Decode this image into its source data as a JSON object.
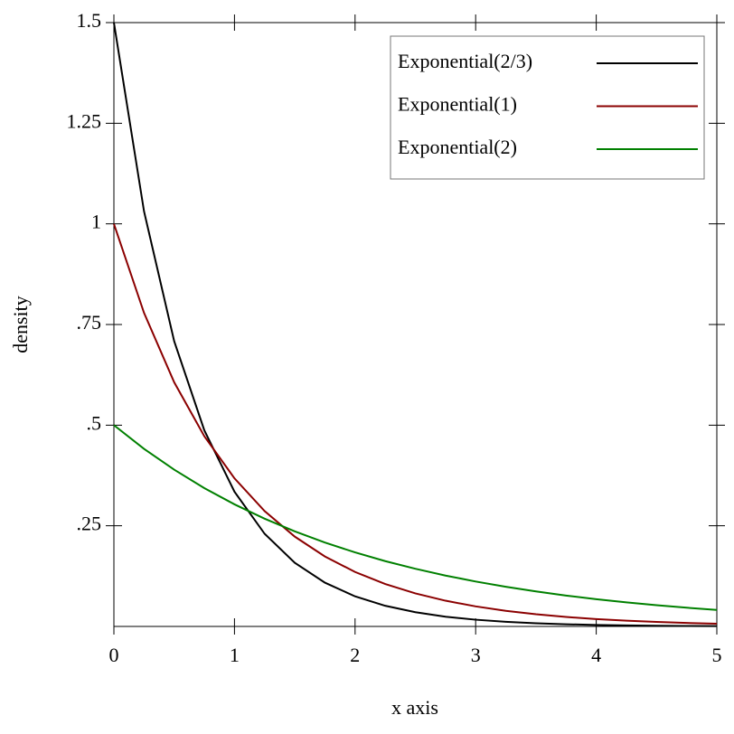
{
  "chart_data": {
    "type": "line",
    "x_label": "x axis",
    "y_label": "density",
    "x": [
      0,
      0.25,
      0.5,
      0.75,
      1,
      1.25,
      1.5,
      1.75,
      2,
      2.25,
      2.5,
      2.75,
      3,
      3.25,
      3.5,
      3.75,
      4,
      4.25,
      4.5,
      4.75,
      5
    ],
    "series": [
      {
        "name": "Exponential(2/3)",
        "color": "#000000",
        "values": [
          1.5,
          1.031,
          0.7086,
          0.487,
          0.3347,
          0.2301,
          0.1581,
          0.1087,
          0.0747,
          0.0513,
          0.0353,
          0.0242,
          0.0167,
          0.0115,
          0.0079,
          0.0054,
          0.0037,
          0.0026,
          0.0018,
          0.0012,
          0.0008
        ]
      },
      {
        "name": "Exponential(1)",
        "color": "#8b0000",
        "values": [
          1,
          0.7788,
          0.6065,
          0.4724,
          0.3679,
          0.2865,
          0.2231,
          0.1738,
          0.1353,
          0.1054,
          0.0821,
          0.0639,
          0.0498,
          0.0388,
          0.0302,
          0.0235,
          0.0183,
          0.0143,
          0.0111,
          0.0087,
          0.0067
        ]
      },
      {
        "name": "Exponential(2)",
        "color": "#008000",
        "values": [
          0.5,
          0.4412,
          0.3894,
          0.3436,
          0.3033,
          0.2676,
          0.2362,
          0.2084,
          0.1839,
          0.1623,
          0.1433,
          0.1264,
          0.1116,
          0.0985,
          0.0869,
          0.0767,
          0.0677,
          0.0597,
          0.0527,
          0.0465,
          0.041
        ]
      }
    ],
    "xlim": [
      0,
      5
    ],
    "ylim": [
      0,
      1.5
    ],
    "xticks": [
      0,
      1,
      2,
      3,
      4,
      5
    ],
    "yticks": [
      {
        "value": 0.25,
        "label": ".25"
      },
      {
        "value": 0.5,
        "label": ".5"
      },
      {
        "value": 0.75,
        "label": ".75"
      },
      1,
      1.25,
      1.5
    ],
    "legend": "top-right",
    "grid": false
  }
}
